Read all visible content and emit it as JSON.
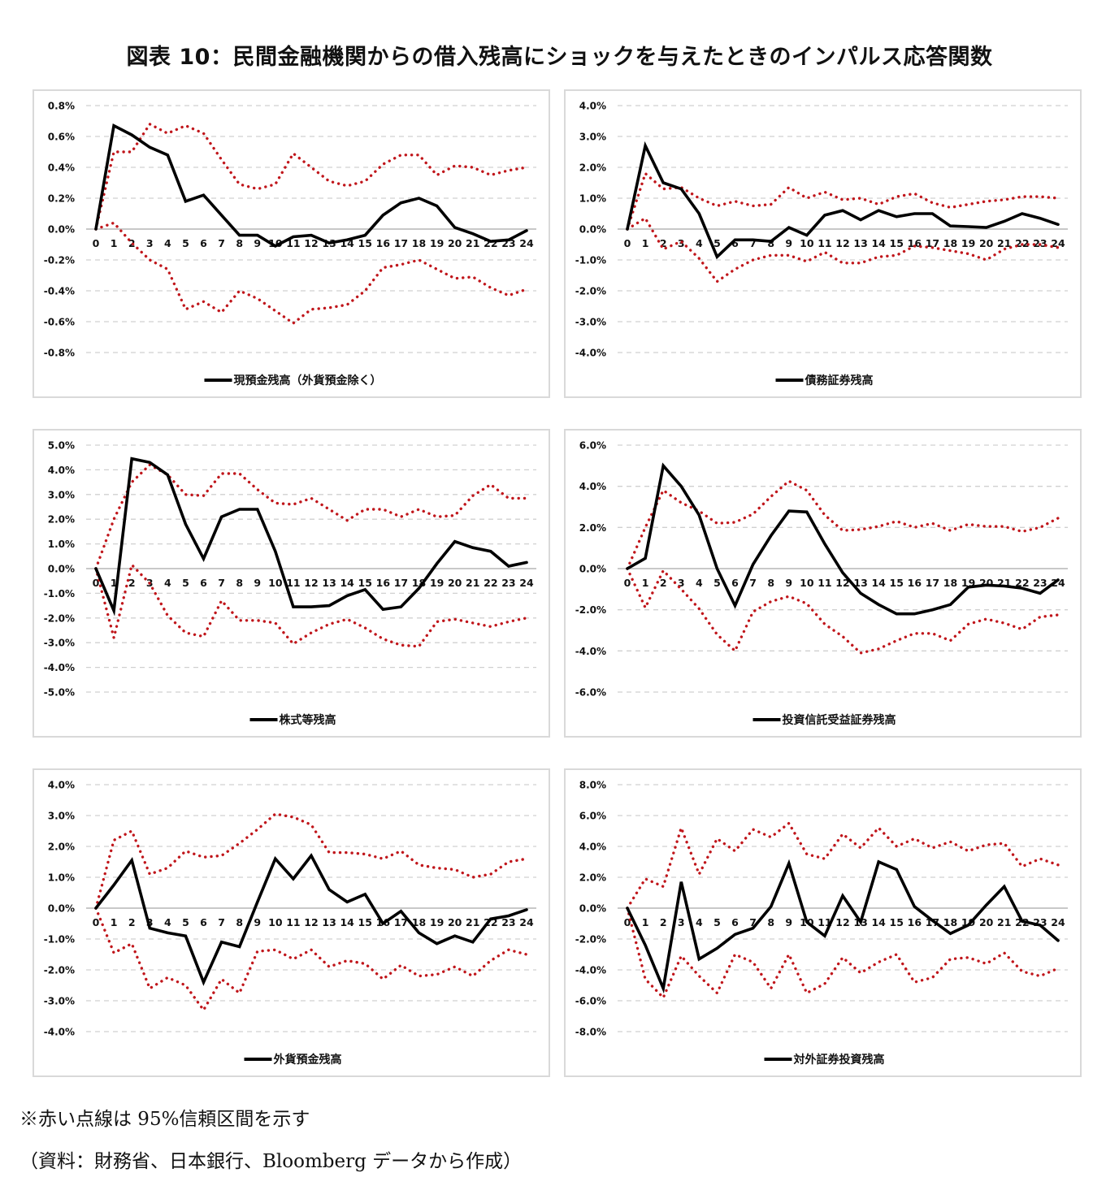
{
  "title": "図表 10：民間金融機関からの借入残高にショックを与えたときのインパルス応答関数",
  "notes": {
    "line1": "※赤い点線は 95%信頼区間を示す",
    "line2": "（資料：財務省、日本銀行、Bloomberg データから作成）"
  },
  "colors": {
    "response": "#000000",
    "confidence": "#c0161b",
    "grid": "#d0d0d0",
    "zero": "#c8c8c8"
  },
  "chart_data": [
    {
      "type": "line",
      "title": "",
      "legend": "現預金残高（外貨預金除く）",
      "legend_position": "bottom",
      "x": [
        0,
        1,
        2,
        3,
        4,
        5,
        6,
        7,
        8,
        9,
        10,
        11,
        12,
        13,
        14,
        15,
        16,
        17,
        18,
        19,
        20,
        21,
        22,
        23,
        24
      ],
      "ylim": [
        -0.8,
        0.8
      ],
      "yticks": [
        0.8,
        0.6,
        0.4,
        0.2,
        0.0,
        -0.2,
        -0.4,
        -0.6,
        -0.8
      ],
      "ytick_labels": [
        "0.8%",
        "0.6%",
        "0.4%",
        "0.2%",
        "0.0%",
        "-0.2%",
        "-0.4%",
        "-0.6%",
        "-0.8%"
      ],
      "grid": true,
      "series": [
        {
          "name": "現預金残高（外貨預金除く）",
          "style": "solid",
          "values": [
            0.0,
            0.67,
            0.61,
            0.53,
            0.48,
            0.18,
            0.22,
            0.09,
            -0.04,
            -0.04,
            -0.11,
            -0.05,
            -0.04,
            -0.09,
            -0.07,
            -0.04,
            0.09,
            0.17,
            0.2,
            0.15,
            0.01,
            -0.03,
            -0.08,
            -0.07,
            -0.01
          ]
        },
        {
          "name": "upper 95%",
          "style": "dotted",
          "values": [
            0.0,
            0.5,
            0.5,
            0.68,
            0.62,
            0.67,
            0.62,
            0.45,
            0.29,
            0.26,
            0.29,
            0.49,
            0.4,
            0.31,
            0.28,
            0.31,
            0.42,
            0.48,
            0.48,
            0.35,
            0.41,
            0.4,
            0.35,
            0.38,
            0.4
          ]
        },
        {
          "name": "lower 95%",
          "style": "dotted",
          "values": [
            0.0,
            0.04,
            -0.09,
            -0.2,
            -0.26,
            -0.52,
            -0.47,
            -0.54,
            -0.4,
            -0.45,
            -0.53,
            -0.61,
            -0.52,
            -0.51,
            -0.49,
            -0.4,
            -0.25,
            -0.23,
            -0.2,
            -0.26,
            -0.32,
            -0.31,
            -0.38,
            -0.43,
            -0.39
          ]
        }
      ]
    },
    {
      "type": "line",
      "title": "",
      "legend": "債務証券残高",
      "legend_position": "bottom",
      "x": [
        0,
        1,
        2,
        3,
        4,
        5,
        6,
        7,
        8,
        9,
        10,
        11,
        12,
        13,
        14,
        15,
        16,
        17,
        18,
        19,
        20,
        21,
        22,
        23,
        24
      ],
      "ylim": [
        -4.0,
        4.0
      ],
      "yticks": [
        4.0,
        3.0,
        2.0,
        1.0,
        0.0,
        -1.0,
        -2.0,
        -3.0,
        -4.0
      ],
      "ytick_labels": [
        "4.0%",
        "3.0%",
        "2.0%",
        "1.0%",
        "0.0%",
        "-1.0%",
        "-2.0%",
        "-3.0%",
        "-4.0%"
      ],
      "grid": true,
      "series": [
        {
          "name": "債務証券残高",
          "style": "solid",
          "values": [
            0.0,
            2.7,
            1.5,
            1.3,
            0.5,
            -0.9,
            -0.35,
            -0.35,
            -0.4,
            0.05,
            -0.2,
            0.45,
            0.6,
            0.3,
            0.6,
            0.4,
            0.5,
            0.5,
            0.1,
            0.08,
            0.05,
            0.25,
            0.5,
            0.35,
            0.15
          ]
        },
        {
          "name": "upper 95%",
          "style": "dotted",
          "values": [
            0.0,
            1.8,
            1.3,
            1.35,
            1.0,
            0.75,
            0.9,
            0.75,
            0.8,
            1.35,
            1.0,
            1.2,
            0.95,
            1.0,
            0.8,
            1.05,
            1.15,
            0.85,
            0.7,
            0.8,
            0.9,
            0.95,
            1.05,
            1.05,
            1.0
          ]
        },
        {
          "name": "lower 95%",
          "style": "dotted",
          "values": [
            0.0,
            0.35,
            -0.65,
            -0.4,
            -0.95,
            -1.7,
            -1.3,
            -1.0,
            -0.85,
            -0.85,
            -1.05,
            -0.75,
            -1.1,
            -1.1,
            -0.9,
            -0.85,
            -0.55,
            -0.6,
            -0.7,
            -0.8,
            -1.0,
            -0.65,
            -0.5,
            -0.5,
            -0.6
          ]
        }
      ]
    },
    {
      "type": "line",
      "title": "",
      "legend": "株式等残高",
      "legend_position": "bottom",
      "x": [
        0,
        1,
        2,
        3,
        4,
        5,
        6,
        7,
        8,
        9,
        10,
        11,
        12,
        13,
        14,
        15,
        16,
        17,
        18,
        19,
        20,
        21,
        22,
        23,
        24
      ],
      "ylim": [
        -5.0,
        5.0
      ],
      "yticks": [
        5.0,
        4.0,
        3.0,
        2.0,
        1.0,
        0.0,
        -1.0,
        -2.0,
        -3.0,
        -4.0,
        -5.0
      ],
      "ytick_labels": [
        "5.0%",
        "4.0%",
        "3.0%",
        "2.0%",
        "1.0%",
        "0.0%",
        "-1.0%",
        "-2.0%",
        "-3.0%",
        "-4.0%",
        "-5.0%"
      ],
      "grid": true,
      "series": [
        {
          "name": "株式等残高",
          "style": "solid",
          "values": [
            0.0,
            -1.7,
            4.45,
            4.3,
            3.8,
            1.8,
            0.4,
            2.1,
            2.4,
            2.4,
            0.7,
            -1.55,
            -1.55,
            -1.5,
            -1.1,
            -0.85,
            -1.65,
            -1.55,
            -0.8,
            0.2,
            1.1,
            0.85,
            0.7,
            0.1,
            0.25
          ]
        },
        {
          "name": "upper 95%",
          "style": "dotted",
          "values": [
            0.0,
            2.0,
            3.5,
            4.2,
            3.8,
            3.0,
            2.95,
            3.85,
            3.85,
            3.2,
            2.65,
            2.6,
            2.85,
            2.4,
            1.95,
            2.4,
            2.4,
            2.1,
            2.4,
            2.1,
            2.15,
            2.95,
            3.4,
            2.85,
            2.85
          ]
        },
        {
          "name": "lower 95%",
          "style": "dotted",
          "values": [
            0.0,
            -2.8,
            0.15,
            -0.6,
            -1.9,
            -2.6,
            -2.75,
            -1.3,
            -2.1,
            -2.1,
            -2.2,
            -3.05,
            -2.6,
            -2.25,
            -2.05,
            -2.4,
            -2.85,
            -3.1,
            -3.15,
            -2.15,
            -2.05,
            -2.2,
            -2.35,
            -2.15,
            -2.0
          ]
        }
      ]
    },
    {
      "type": "line",
      "title": "",
      "legend": "投資信託受益証券残高",
      "legend_position": "bottom",
      "x": [
        0,
        1,
        2,
        3,
        4,
        5,
        6,
        7,
        8,
        9,
        10,
        11,
        12,
        13,
        14,
        15,
        16,
        17,
        18,
        19,
        20,
        21,
        22,
        23,
        24
      ],
      "ylim": [
        -6.0,
        6.0
      ],
      "yticks": [
        6.0,
        4.0,
        2.0,
        0.0,
        -2.0,
        -4.0,
        -6.0
      ],
      "ytick_labels": [
        "6.0%",
        "4.0%",
        "2.0%",
        "0.0%",
        "-2.0%",
        "-4.0%",
        "-6.0%"
      ],
      "grid": true,
      "series": [
        {
          "name": "投資信託受益証券残高",
          "style": "solid",
          "values": [
            0.0,
            0.5,
            5.0,
            4.0,
            2.6,
            0.0,
            -1.8,
            0.2,
            1.6,
            2.8,
            2.75,
            1.2,
            -0.2,
            -1.2,
            -1.75,
            -2.2,
            -2.2,
            -2.0,
            -1.75,
            -0.9,
            -0.8,
            -0.85,
            -0.95,
            -1.2,
            -0.55
          ]
        },
        {
          "name": "upper 95%",
          "style": "dotted",
          "values": [
            0.0,
            2.0,
            3.8,
            3.2,
            2.8,
            2.2,
            2.25,
            2.65,
            3.5,
            4.25,
            3.8,
            2.6,
            1.85,
            1.9,
            2.05,
            2.3,
            2.0,
            2.2,
            1.85,
            2.15,
            2.05,
            2.05,
            1.8,
            2.0,
            2.45
          ]
        },
        {
          "name": "lower 95%",
          "style": "dotted",
          "values": [
            0.0,
            -1.9,
            -0.1,
            -1.0,
            -1.95,
            -3.2,
            -4.0,
            -2.1,
            -1.6,
            -1.35,
            -1.7,
            -2.7,
            -3.3,
            -4.1,
            -3.9,
            -3.5,
            -3.15,
            -3.15,
            -3.5,
            -2.7,
            -2.45,
            -2.65,
            -2.95,
            -2.35,
            -2.25
          ]
        }
      ]
    },
    {
      "type": "line",
      "title": "",
      "legend": "外貨預金残高",
      "legend_position": "bottom",
      "x": [
        0,
        1,
        2,
        3,
        4,
        5,
        6,
        7,
        8,
        9,
        10,
        11,
        12,
        13,
        14,
        15,
        16,
        17,
        18,
        19,
        20,
        21,
        22,
        23,
        24
      ],
      "ylim": [
        -4.0,
        4.0
      ],
      "yticks": [
        4.0,
        3.0,
        2.0,
        1.0,
        0.0,
        -1.0,
        -2.0,
        -3.0,
        -4.0
      ],
      "ytick_labels": [
        "4.0%",
        "3.0%",
        "2.0%",
        "1.0%",
        "0.0%",
        "-1.0%",
        "-2.0%",
        "-3.0%",
        "-4.0%"
      ],
      "grid": true,
      "series": [
        {
          "name": "外貨預金残高",
          "style": "solid",
          "values": [
            0.0,
            0.75,
            1.55,
            -0.65,
            -0.8,
            -0.9,
            -2.4,
            -1.1,
            -1.25,
            0.2,
            1.6,
            0.95,
            1.7,
            0.6,
            0.2,
            0.45,
            -0.5,
            -0.1,
            -0.8,
            -1.15,
            -0.9,
            -1.1,
            -0.35,
            -0.25,
            -0.05
          ]
        },
        {
          "name": "upper 95%",
          "style": "dotted",
          "values": [
            0.0,
            2.2,
            2.5,
            1.1,
            1.3,
            1.85,
            1.65,
            1.7,
            2.1,
            2.55,
            3.05,
            2.95,
            2.7,
            1.8,
            1.8,
            1.75,
            1.6,
            1.85,
            1.4,
            1.3,
            1.25,
            1.0,
            1.1,
            1.5,
            1.6
          ]
        },
        {
          "name": "lower 95%",
          "style": "dotted",
          "values": [
            0.0,
            -1.45,
            -1.15,
            -2.6,
            -2.25,
            -2.5,
            -3.3,
            -2.3,
            -2.75,
            -1.4,
            -1.35,
            -1.65,
            -1.35,
            -1.9,
            -1.7,
            -1.8,
            -2.3,
            -1.85,
            -2.2,
            -2.15,
            -1.9,
            -2.2,
            -1.7,
            -1.35,
            -1.5
          ]
        }
      ]
    },
    {
      "type": "line",
      "title": "",
      "legend": "対外証券投資残高",
      "legend_position": "bottom",
      "x": [
        0,
        1,
        2,
        3,
        4,
        5,
        6,
        7,
        8,
        9,
        10,
        11,
        12,
        13,
        14,
        15,
        16,
        17,
        18,
        19,
        20,
        21,
        22,
        23,
        24
      ],
      "ylim": [
        -8.0,
        8.0
      ],
      "yticks": [
        8.0,
        6.0,
        4.0,
        2.0,
        0.0,
        -2.0,
        -4.0,
        -6.0,
        -8.0
      ],
      "ytick_labels": [
        "8.0%",
        "6.0%",
        "4.0%",
        "2.0%",
        "0.0%",
        "-2.0%",
        "-4.0%",
        "-6.0%",
        "-8.0%"
      ],
      "grid": true,
      "series": [
        {
          "name": "対外証券投資残高",
          "style": "solid",
          "values": [
            0.0,
            -2.4,
            -5.2,
            1.7,
            -3.3,
            -2.6,
            -1.7,
            -1.3,
            0.1,
            2.9,
            -0.9,
            -1.8,
            0.8,
            -0.9,
            3.0,
            2.5,
            0.1,
            -0.8,
            -1.65,
            -1.1,
            0.2,
            1.4,
            -0.85,
            -1.1,
            -2.1
          ]
        },
        {
          "name": "upper 95%",
          "style": "dotted",
          "values": [
            0.0,
            1.9,
            1.4,
            5.2,
            2.2,
            4.5,
            3.7,
            5.1,
            4.6,
            5.5,
            3.5,
            3.2,
            4.8,
            3.9,
            5.2,
            4.0,
            4.5,
            3.9,
            4.3,
            3.7,
            4.1,
            4.2,
            2.7,
            3.2,
            2.8
          ]
        },
        {
          "name": "lower 95%",
          "style": "dotted",
          "values": [
            0.0,
            -4.6,
            -5.8,
            -3.1,
            -4.4,
            -5.5,
            -3.0,
            -3.5,
            -5.2,
            -3.0,
            -5.5,
            -4.9,
            -3.2,
            -4.2,
            -3.5,
            -3.0,
            -4.8,
            -4.5,
            -3.3,
            -3.2,
            -3.6,
            -2.9,
            -4.1,
            -4.4,
            -3.9
          ]
        }
      ]
    }
  ]
}
